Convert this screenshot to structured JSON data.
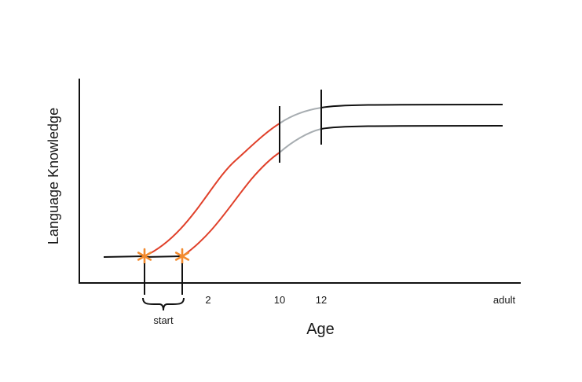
{
  "chart_data": {
    "type": "line",
    "title": "",
    "xlabel": "Age",
    "ylabel": "Language Knowledge",
    "x_ticks": [
      "2",
      "10",
      "12",
      "adult"
    ],
    "annotations": [
      {
        "text": "start",
        "marks": "range between the two onset points"
      }
    ],
    "series": [
      {
        "segments": [
          "flat baseline",
          "rising (red)",
          "transition (gray)",
          "plateau"
        ]
      },
      {
        "segments": [
          "flat baseline",
          "rising (red)",
          "transition (gray)",
          "plateau"
        ]
      }
    ],
    "markers": [
      "orange asterisk at onset of series 1",
      "orange asterisk at onset of series 2"
    ],
    "vertical_markers_at": [
      "10",
      "12"
    ],
    "colors": {
      "axis": "#111111",
      "baseline": "#111111",
      "rise": "#e0402a",
      "transition": "#a7adb1",
      "onset_marker": "#f28a2e"
    },
    "grid": false,
    "legend": "none"
  }
}
